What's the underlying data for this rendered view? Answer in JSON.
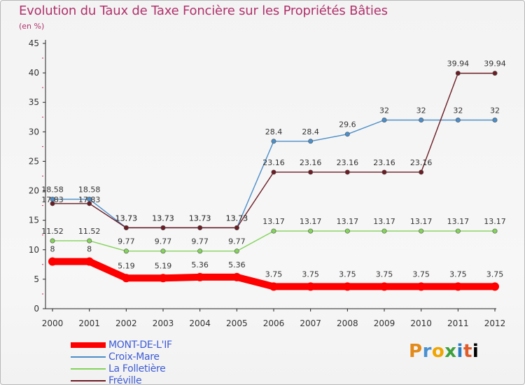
{
  "chart_data": {
    "type": "line",
    "title": "Evolution du Taux de Taxe Foncière sur les Propriétés Bâties",
    "ylabel": "(en %)",
    "xlabel": "",
    "x": [
      "2000",
      "2001",
      "2002",
      "2003",
      "2004",
      "2005",
      "2006",
      "2007",
      "2008",
      "2009",
      "2010",
      "2011",
      "2012"
    ],
    "ylim": [
      0,
      45
    ],
    "yticks": [
      0,
      5,
      10,
      15,
      20,
      25,
      30,
      35,
      40,
      45
    ],
    "grid": false,
    "legend": "bottom-left",
    "series": [
      {
        "name": "MONT-DE-L'IF",
        "color": "#ff0000",
        "values": [
          8,
          8,
          5.19,
          5.19,
          5.36,
          5.36,
          3.75,
          3.75,
          3.75,
          3.75,
          3.75,
          3.75,
          3.75
        ],
        "labels": [
          "8",
          "8",
          "5.19",
          "5.19",
          "5.36",
          "5.36",
          "3.75",
          "3.75",
          "3.75",
          "3.75",
          "3.75",
          "3.75",
          "3.75"
        ]
      },
      {
        "name": "Croix-Mare",
        "color": "#4b8ec8",
        "values": [
          18.58,
          18.58,
          13.73,
          13.73,
          13.73,
          13.73,
          28.4,
          28.4,
          29.6,
          32,
          32,
          32,
          32
        ],
        "labels": [
          "18.58",
          "18.58",
          "13.73",
          "13.73",
          "13.73",
          "13.73",
          "28.4",
          "28.4",
          "29.6",
          "32",
          "32",
          "32",
          "32"
        ]
      },
      {
        "name": "La Folletière",
        "color": "#84d35a",
        "values": [
          11.52,
          11.52,
          9.77,
          9.77,
          9.77,
          9.77,
          13.17,
          13.17,
          13.17,
          13.17,
          13.17,
          13.17,
          13.17
        ],
        "labels": [
          "11.52",
          "11.52",
          "9.77",
          "9.77",
          "9.77",
          "9.77",
          "13.17",
          "13.17",
          "13.17",
          "13.17",
          "13.17",
          "13.17",
          "13.17"
        ]
      },
      {
        "name": "Fréville",
        "color": "#6b1c24",
        "values": [
          17.83,
          17.83,
          13.73,
          13.73,
          13.73,
          13.73,
          23.16,
          23.16,
          23.16,
          23.16,
          23.16,
          39.94,
          39.94
        ],
        "labels": [
          "17.83",
          "17.83",
          "13.73",
          "13.73",
          "13.73",
          "13.73",
          "23.16",
          "23.16",
          "23.16",
          "23.16",
          "23.16",
          "39.94",
          "39.94"
        ]
      }
    ]
  },
  "logo": {
    "letters": [
      "P",
      "r",
      "o",
      "x",
      "i",
      "t",
      "i"
    ]
  },
  "colors": {
    "title": "#b0316b",
    "legend_text": "#3d5bd6",
    "axis": "#222222",
    "minor_tick": "#d0245a"
  }
}
